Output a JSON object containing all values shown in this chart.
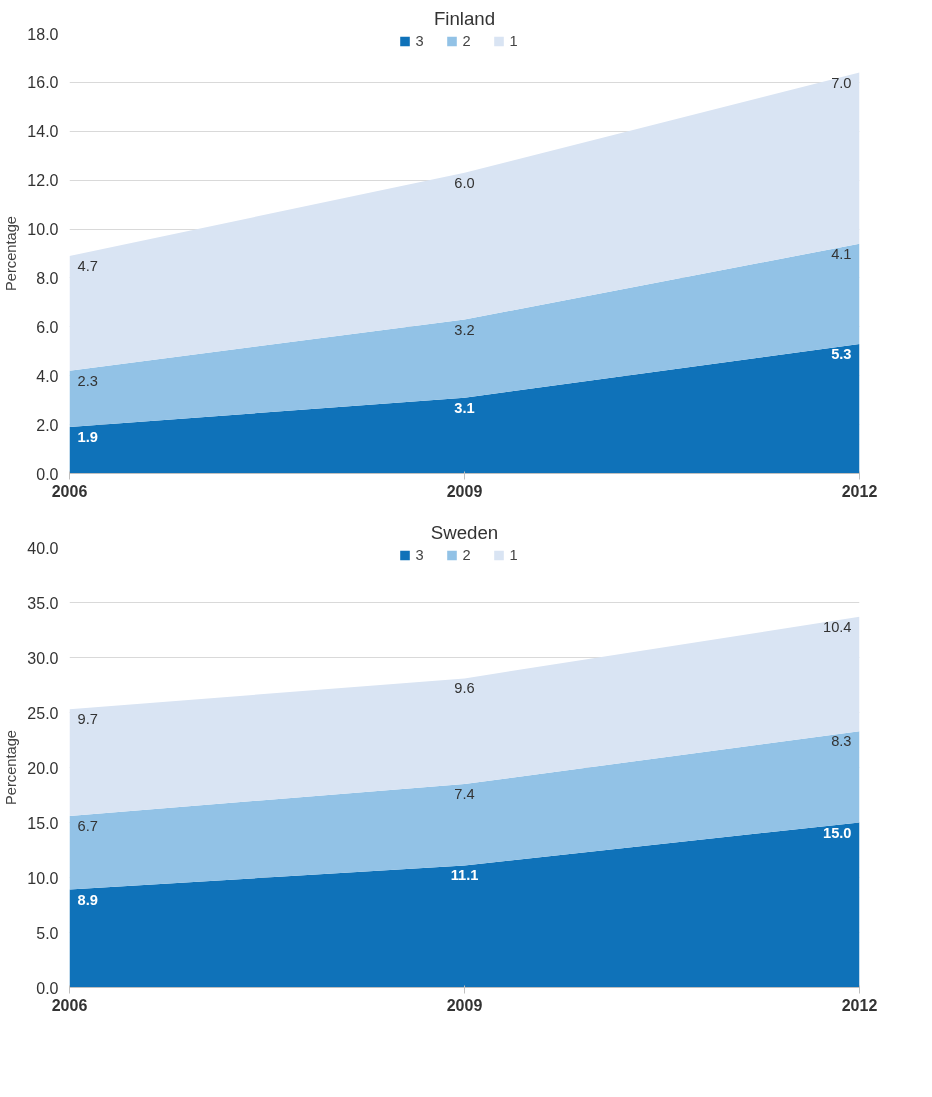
{
  "chart_data": [
    {
      "type": "area",
      "title": "Finland",
      "ylabel": "Percentage",
      "categories": [
        "2006",
        "2009",
        "2012"
      ],
      "stacked": true,
      "legend": "top",
      "grid": "y",
      "data_labels": true,
      "ylim": [
        0,
        18
      ],
      "yticks": [
        {
          "value": 0,
          "label": "0.0"
        },
        {
          "value": 2,
          "label": "2.0"
        },
        {
          "value": 4,
          "label": "4.0"
        },
        {
          "value": 6,
          "label": "6.0"
        },
        {
          "value": 8,
          "label": "8.0"
        },
        {
          "value": 10,
          "label": "10.0"
        },
        {
          "value": 12,
          "label": "12.0"
        },
        {
          "value": 14,
          "label": "14.0"
        },
        {
          "value": 16,
          "label": "16.0"
        },
        {
          "value": 18,
          "label": "18.0"
        }
      ],
      "series": [
        {
          "name": "3",
          "color": "#0f72b9",
          "values": [
            1.9,
            3.1,
            5.3
          ],
          "value_labels": [
            "1.9",
            "3.1",
            "5.3"
          ]
        },
        {
          "name": "2",
          "color": "#92c2e6",
          "values": [
            2.3,
            3.2,
            4.1
          ],
          "value_labels": [
            "2.3",
            "3.2",
            "4.1"
          ]
        },
        {
          "name": "1",
          "color": "#d9e4f3",
          "values": [
            4.7,
            6.0,
            7.0
          ],
          "value_labels": [
            "4.7",
            "6.0",
            "7.0"
          ]
        }
      ]
    },
    {
      "type": "area",
      "title": "Sweden",
      "ylabel": "Percentage",
      "categories": [
        "2006",
        "2009",
        "2012"
      ],
      "stacked": true,
      "legend": "top",
      "grid": "y",
      "data_labels": true,
      "ylim": [
        0,
        40
      ],
      "yticks": [
        {
          "value": 0,
          "label": "0.0"
        },
        {
          "value": 5,
          "label": "5.0"
        },
        {
          "value": 10,
          "label": "10.0"
        },
        {
          "value": 15,
          "label": "15.0"
        },
        {
          "value": 20,
          "label": "20.0"
        },
        {
          "value": 25,
          "label": "25.0"
        },
        {
          "value": 30,
          "label": "30.0"
        },
        {
          "value": 35,
          "label": "35.0"
        },
        {
          "value": 40,
          "label": "40.0"
        }
      ],
      "series": [
        {
          "name": "3",
          "color": "#0f72b9",
          "values": [
            8.9,
            11.1,
            15.0
          ],
          "value_labels": [
            "8.9",
            "11.1",
            "15.0"
          ]
        },
        {
          "name": "2",
          "color": "#92c2e6",
          "values": [
            6.7,
            7.4,
            8.3
          ],
          "value_labels": [
            "6.7",
            "7.4",
            "8.3"
          ]
        },
        {
          "name": "1",
          "color": "#d9e4f3",
          "values": [
            9.7,
            9.6,
            10.4
          ],
          "value_labels": [
            "9.7",
            "9.6",
            "10.4"
          ]
        }
      ]
    }
  ]
}
